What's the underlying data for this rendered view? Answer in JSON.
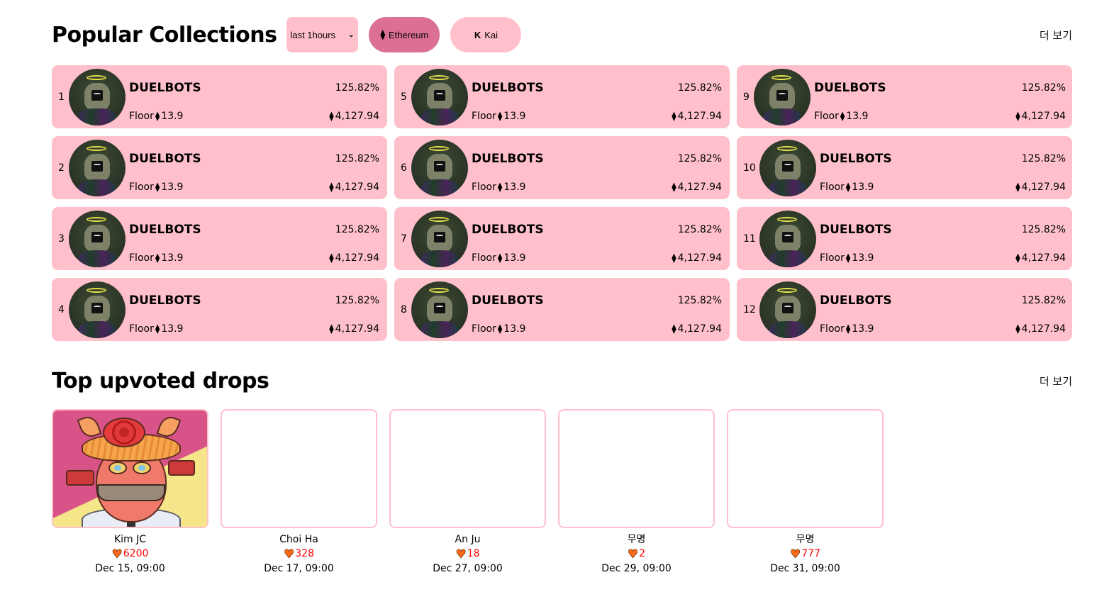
{
  "popular": {
    "title": "Popular Collections",
    "period_select": {
      "value": "last 1hours"
    },
    "chains": [
      {
        "label": "Ethereum",
        "icon": "ethereum-icon",
        "glyph": "⧫",
        "active": true
      },
      {
        "label": "Kai",
        "icon": "kaia-icon",
        "glyph": "K",
        "active": false
      }
    ],
    "more_label": "더 보기",
    "collections": [
      {
        "rank": "1",
        "name": "DUELBOTS",
        "change": "125.82%",
        "floor_label": "Floor",
        "floor": "13.9",
        "volume": "4,127.94"
      },
      {
        "rank": "2",
        "name": "DUELBOTS",
        "change": "125.82%",
        "floor_label": "Floor",
        "floor": "13.9",
        "volume": "4,127.94"
      },
      {
        "rank": "3",
        "name": "DUELBOTS",
        "change": "125.82%",
        "floor_label": "Floor",
        "floor": "13.9",
        "volume": "4,127.94"
      },
      {
        "rank": "4",
        "name": "DUELBOTS",
        "change": "125.82%",
        "floor_label": "Floor",
        "floor": "13.9",
        "volume": "4,127.94"
      },
      {
        "rank": "5",
        "name": "DUELBOTS",
        "change": "125.82%",
        "floor_label": "Floor",
        "floor": "13.9",
        "volume": "4,127.94"
      },
      {
        "rank": "6",
        "name": "DUELBOTS",
        "change": "125.82%",
        "floor_label": "Floor",
        "floor": "13.9",
        "volume": "4,127.94"
      },
      {
        "rank": "7",
        "name": "DUELBOTS",
        "change": "125.82%",
        "floor_label": "Floor",
        "floor": "13.9",
        "volume": "4,127.94"
      },
      {
        "rank": "8",
        "name": "DUELBOTS",
        "change": "125.82%",
        "floor_label": "Floor",
        "floor": "13.9",
        "volume": "4,127.94"
      },
      {
        "rank": "9",
        "name": "DUELBOTS",
        "change": "125.82%",
        "floor_label": "Floor",
        "floor": "13.9",
        "volume": "4,127.94"
      },
      {
        "rank": "10",
        "name": "DUELBOTS",
        "change": "125.82%",
        "floor_label": "Floor",
        "floor": "13.9",
        "volume": "4,127.94"
      },
      {
        "rank": "11",
        "name": "DUELBOTS",
        "change": "125.82%",
        "floor_label": "Floor",
        "floor": "13.9",
        "volume": "4,127.94"
      },
      {
        "rank": "12",
        "name": "DUELBOTS",
        "change": "125.82%",
        "floor_label": "Floor",
        "floor": "13.9",
        "volume": "4,127.94"
      }
    ],
    "eth_glyph": "⧫"
  },
  "drops": {
    "title": "Top upvoted drops",
    "more_label": "더 보기",
    "heart_glyph": "♥",
    "items": [
      {
        "name": "Kim JC",
        "likes": "6200",
        "date": "Dec 15, 09:00",
        "has_image": true
      },
      {
        "name": "Choi Ha",
        "likes": "328",
        "date": "Dec 17, 09:00",
        "has_image": false
      },
      {
        "name": "An Ju",
        "likes": "18",
        "date": "Dec 27, 09:00",
        "has_image": false
      },
      {
        "name": "무명",
        "likes": "2",
        "date": "Dec 29, 09:00",
        "has_image": false
      },
      {
        "name": "무명",
        "likes": "777",
        "date": "Dec 31, 09:00",
        "has_image": false
      }
    ]
  },
  "colors": {
    "card_bg": "#ffc0cb",
    "active_chain": "#db7093",
    "likes_text": "#ff0000",
    "heart": "#ff6a1a"
  }
}
